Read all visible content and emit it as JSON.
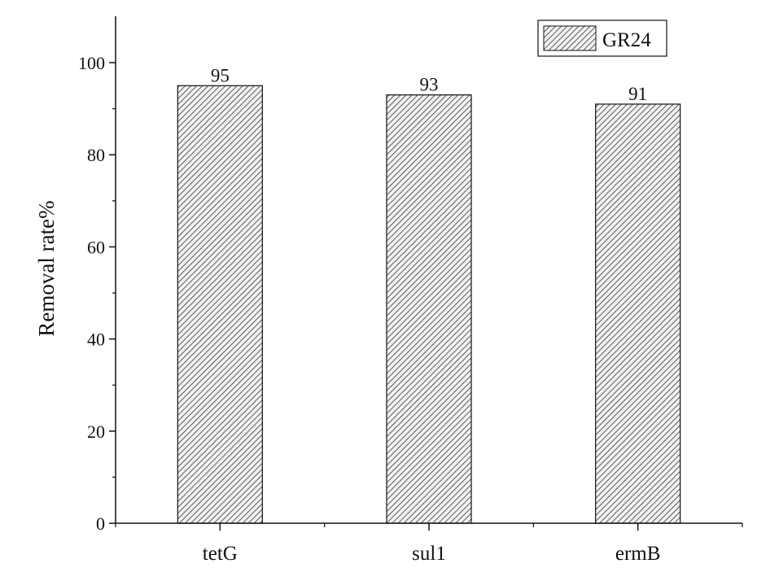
{
  "chart_data": {
    "type": "bar",
    "categories": [
      "tetG",
      "sul1",
      "ermB"
    ],
    "series": [
      {
        "name": "GR24",
        "values": [
          95,
          93,
          91
        ]
      }
    ],
    "data_labels": [
      "95",
      "93",
      "91"
    ],
    "title": "",
    "xlabel": "",
    "ylabel": "Removal rate%",
    "ylim": [
      0,
      110
    ],
    "yticks": [
      0,
      20,
      40,
      60,
      80,
      100
    ],
    "grid": false,
    "legend": "top-right",
    "bar_fill": "hatched",
    "colors": {
      "axis": "#111111",
      "hatch": "#333333",
      "bar_bg": "#f2f2f2"
    }
  }
}
